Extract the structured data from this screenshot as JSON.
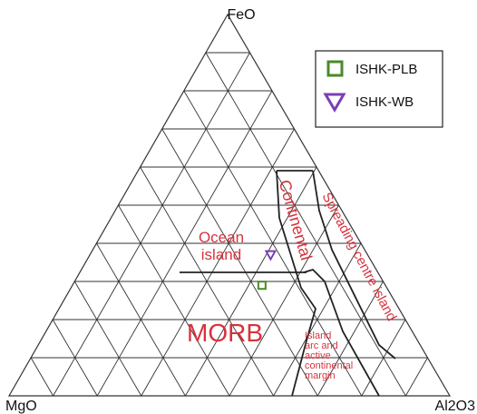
{
  "chart_data": {
    "type": "scatter",
    "diagram": "ternary",
    "vertices": {
      "top": "FeO",
      "bottom_left": "MgO",
      "bottom_right": "Al2O3"
    },
    "grid": true,
    "grid_divisions": 10,
    "fields": [
      {
        "id": "ocean-island",
        "lines": [
          "Ocean",
          "island"
        ]
      },
      {
        "id": "continental",
        "lines": [
          "Continental"
        ]
      },
      {
        "id": "spreading",
        "lines": [
          "Spreading centre island"
        ]
      },
      {
        "id": "morb",
        "lines": [
          "MORB"
        ]
      },
      {
        "id": "arc",
        "lines": [
          "Island",
          "arc and",
          "active",
          "continental",
          "margin"
        ]
      }
    ],
    "legend": {
      "placement": "top-right",
      "entries": [
        {
          "label": "ISHK-PLB",
          "marker": "square",
          "color": "#4a8a2a"
        },
        {
          "label": "ISHK-WB",
          "marker": "triangle-down",
          "color": "#7b3fb5"
        }
      ]
    },
    "series": [
      {
        "name": "ISHK-PLB",
        "marker": "square",
        "color": "#4a8a2a",
        "points": [
          {
            "FeO": 0.29,
            "MgO": 0.28,
            "Al2O3": 0.43
          }
        ]
      },
      {
        "name": "ISHK-WB",
        "marker": "triangle-down",
        "color": "#7b3fb5",
        "points": [
          {
            "FeO": 0.37,
            "MgO": 0.22,
            "Al2O3": 0.41
          }
        ]
      }
    ],
    "colors": {
      "field_text": "#d6333d",
      "grid": "#333333",
      "boundary": "#222222"
    }
  }
}
